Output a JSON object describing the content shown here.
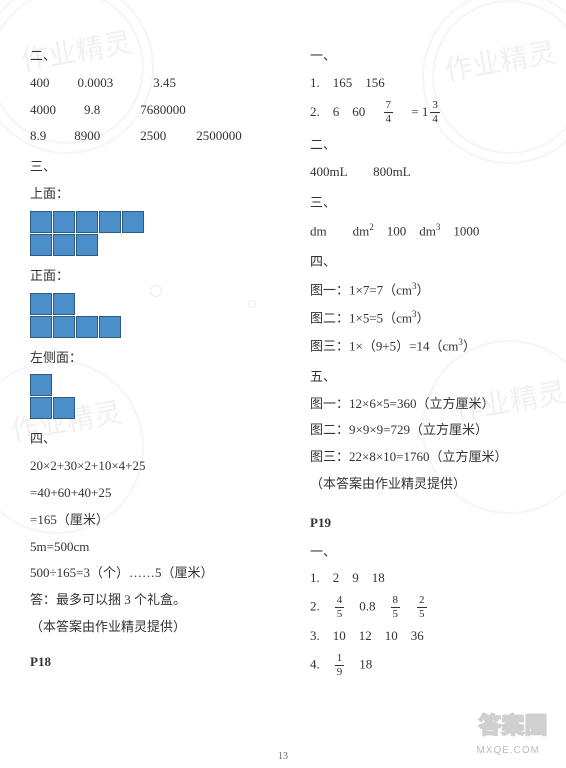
{
  "pageNumber": "13",
  "logoText": "答案圈",
  "siteText": "MXQE.COM",
  "watermarks": [
    "作业精灵",
    "作业精灵",
    "作业精灵",
    "作业精灵",
    "作业精灵"
  ],
  "left": {
    "sec2": {
      "heading": "二、",
      "rows": [
        [
          "400",
          "0.0003",
          "3.45",
          ""
        ],
        [
          "4000",
          "9.8",
          "7680000",
          ""
        ],
        [
          "8.9",
          "8900",
          "2500",
          "2500000"
        ]
      ],
      "gaps": [
        28,
        40,
        30,
        0
      ]
    },
    "sec3": {
      "heading": "三、",
      "topLabel": "上面：",
      "topShape": [
        [
          1,
          1,
          1,
          1,
          1,
          0
        ],
        [
          1,
          1,
          1,
          0,
          0,
          0
        ]
      ],
      "frontLabel": "正面：",
      "frontShape": [
        [
          1,
          1,
          0,
          0,
          0,
          0
        ],
        [
          1,
          1,
          1,
          1,
          0,
          0
        ]
      ],
      "sideLabel": "左侧面：",
      "sideShape": [
        [
          1,
          0,
          0,
          0,
          0,
          0
        ],
        [
          1,
          1,
          0,
          0,
          0,
          0
        ]
      ]
    },
    "sec4": {
      "heading": "四、",
      "lines": [
        "20×2+30×2+10×4+25",
        "=40+60+40+25",
        "=165（厘米）",
        "5m=500cm",
        "500÷165=3（个）……5（厘米）",
        "答：最多可以捆 3 个礼盒。",
        "（本答案由作业精灵提供）"
      ]
    },
    "p18": "P18"
  },
  "right": {
    "sec1": {
      "heading": "一、",
      "item1_prefix": "1.　165　156",
      "item2_prefix": "2.　6　60　",
      "frac1": {
        "n": "7",
        "d": "4"
      },
      "mixWhole": "1",
      "frac2": {
        "n": "3",
        "d": "4"
      }
    },
    "sec2": {
      "heading": "二、",
      "line": "400mL　　800mL"
    },
    "sec3": {
      "heading": "三、",
      "line": "dm　　dm<sup class='sup'>2</sup>　100　dm<sup class='sup'>3</sup>　1000"
    },
    "sec4": {
      "heading": "四、",
      "lines": [
        "图一：1×7=7（cm<sup class='sup'>3</sup>）",
        "图二：1×5=5（cm<sup class='sup'>3</sup>）",
        "图三：1×（9+5）=14（cm<sup class='sup'>3</sup>）"
      ]
    },
    "sec5": {
      "heading": "五、",
      "lines": [
        "图一：12×6×5=360（立方厘米）",
        "图二：9×9×9=729（立方厘米）",
        "图三：22×8×10=1760（立方厘米）",
        "（本答案由作业精灵提供）"
      ]
    },
    "p19": "P19",
    "p19sec1": {
      "heading": "一、",
      "line1": "1.　2　9　18",
      "line2_prefix": "2.　",
      "line2_fracs": [
        {
          "n": "4",
          "d": "5"
        },
        "　0.8　",
        {
          "n": "8",
          "d": "5"
        },
        "　",
        {
          "n": "2",
          "d": "5"
        }
      ],
      "line3": "3.　10　12　10　36",
      "line4_prefix": "4.　",
      "line4_frac": {
        "n": "1",
        "d": "9"
      },
      "line4_rest": "　18"
    }
  }
}
